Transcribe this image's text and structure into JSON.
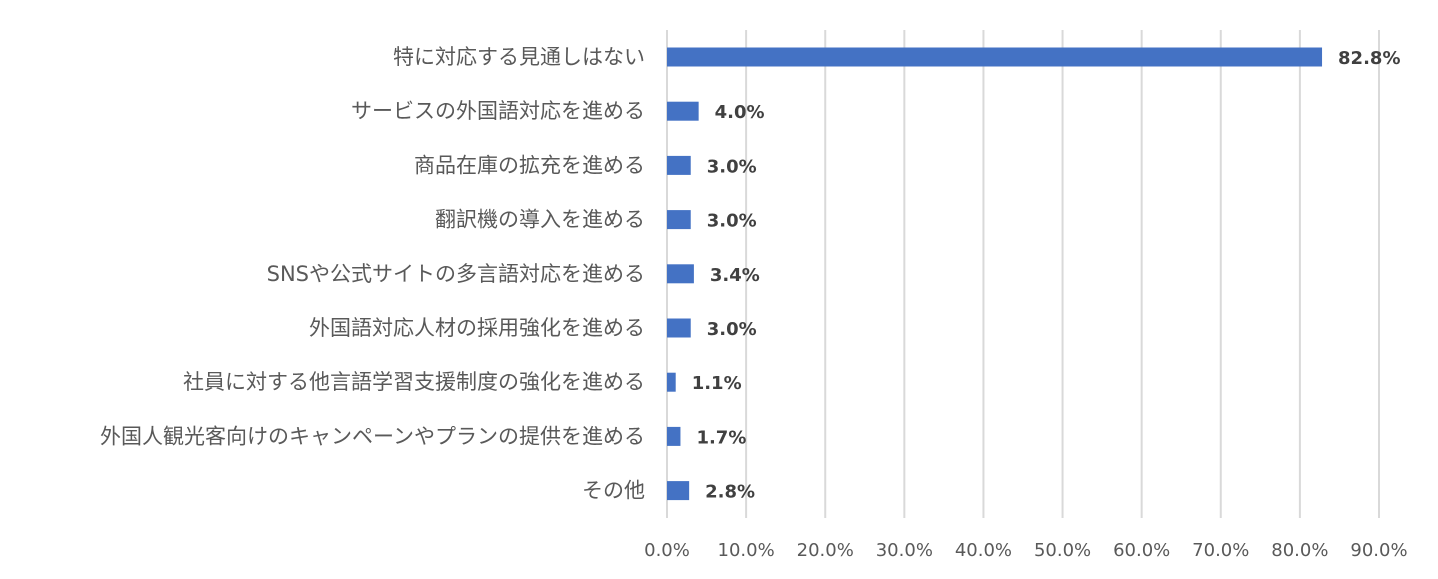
{
  "chart_data": {
    "type": "bar",
    "orientation": "horizontal",
    "categories": [
      "特に対応する見通しはない",
      "サービスの外国語対応を進める",
      "商品在庫の拡充を進める",
      "翻訳機の導入を進める",
      "SNSや公式サイトの多言語対応を進める",
      "外国語対応人材の採用強化を進める",
      "社員に対する他言語学習支援制度の強化を進める",
      "外国人観光客向けのキャンペーンやプランの提供を進める",
      "その他"
    ],
    "values": [
      82.8,
      4.0,
      3.0,
      3.0,
      3.4,
      3.0,
      1.1,
      1.7,
      2.8
    ],
    "value_labels": [
      "82.8%",
      "4.0%",
      "3.0%",
      "3.0%",
      "3.4%",
      "3.0%",
      "1.1%",
      "1.7%",
      "2.8%"
    ],
    "xlim": [
      0,
      90
    ],
    "x_ticks": [
      0,
      10,
      20,
      30,
      40,
      50,
      60,
      70,
      80,
      90
    ],
    "x_tick_labels": [
      "0.0%",
      "10.0%",
      "20.0%",
      "30.0%",
      "40.0%",
      "50.0%",
      "60.0%",
      "70.0%",
      "80.0%",
      "90.0%"
    ],
    "title": "",
    "xlabel": "",
    "ylabel": "",
    "grid": "vertical",
    "legend": "none",
    "bar_color": "#4472c4"
  }
}
